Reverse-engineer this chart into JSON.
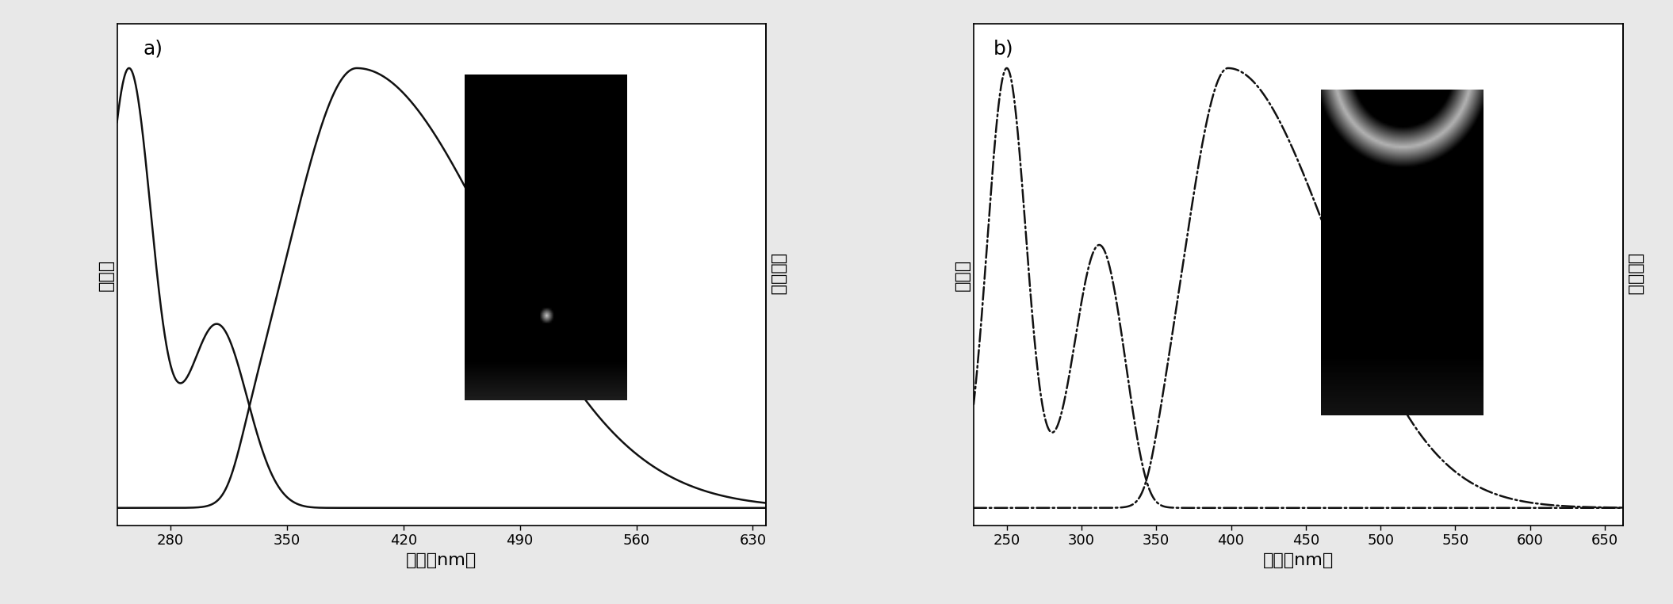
{
  "panel_a": {
    "label": "a)",
    "xlabel": "波长（nm）",
    "ylabel_left": "吸光度",
    "ylabel_right": "荆光强度",
    "xticks": [
      280,
      350,
      420,
      490,
      560,
      630
    ],
    "xlim": [
      248,
      638
    ],
    "ylim": [
      -0.04,
      1.1
    ]
  },
  "panel_b": {
    "label": "b)",
    "xlabel": "波长（nm）",
    "ylabel_left": "吸光度",
    "ylabel_right": "荆光强度",
    "xticks": [
      250,
      300,
      350,
      400,
      450,
      500,
      550,
      600,
      650
    ],
    "xlim": [
      228,
      662
    ],
    "ylim": [
      -0.04,
      1.1
    ]
  },
  "bg_color": "#ffffff",
  "plot_bg": "#ffffff",
  "line_color": "#111111",
  "font_size_label": 16,
  "font_size_tick": 13,
  "font_size_panel": 18,
  "line_width": 1.8
}
